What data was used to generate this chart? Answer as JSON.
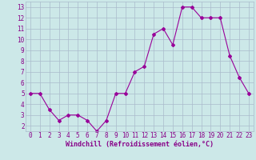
{
  "x": [
    0,
    1,
    2,
    3,
    4,
    5,
    6,
    7,
    8,
    9,
    10,
    11,
    12,
    13,
    14,
    15,
    16,
    17,
    18,
    19,
    20,
    21,
    22,
    23
  ],
  "y": [
    5.0,
    5.0,
    3.5,
    2.5,
    3.0,
    3.0,
    2.5,
    1.5,
    2.5,
    5.0,
    5.0,
    7.0,
    7.5,
    10.5,
    11.0,
    9.5,
    13.0,
    13.0,
    12.0,
    12.0,
    12.0,
    8.5,
    6.5,
    5.0
  ],
  "line_color": "#990099",
  "marker": "D",
  "marker_size": 2,
  "bg_color": "#cce8e8",
  "grid_color": "#aabbcc",
  "tick_color": "#880088",
  "xlabel": "Windchill (Refroidissement éolien,°C)",
  "xlim": [
    -0.5,
    23.5
  ],
  "ylim": [
    1.5,
    13.5
  ],
  "yticks": [
    2,
    3,
    4,
    5,
    6,
    7,
    8,
    9,
    10,
    11,
    12,
    13
  ],
  "xticks": [
    0,
    1,
    2,
    3,
    4,
    5,
    6,
    7,
    8,
    9,
    10,
    11,
    12,
    13,
    14,
    15,
    16,
    17,
    18,
    19,
    20,
    21,
    22,
    23
  ]
}
